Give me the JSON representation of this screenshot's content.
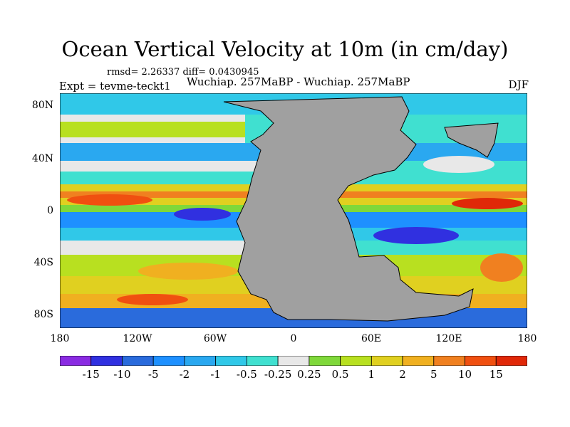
{
  "title": "Ocean Vertical Velocity at 10m (in cm/day)",
  "stats": "rmsd= 2.26337 diff= 0.0430945",
  "left_label": "Expt = tevme-teckt1",
  "subtitle": "Wuchiap. 257MaBP - Wuchiap. 257MaBP",
  "season": "DJF",
  "lat_labels": [
    "80N",
    "40N",
    "0",
    "40S",
    "80S"
  ],
  "lon_labels": [
    "180",
    "120W",
    "60W",
    "0",
    "60E",
    "120E",
    "180"
  ],
  "colorbar": {
    "labels": [
      "-15",
      "-10",
      "-5",
      "-2",
      "-1",
      "-0.5",
      "-0.25",
      "0.25",
      "0.5",
      "1",
      "2",
      "5",
      "10",
      "15"
    ],
    "colors": [
      "#8a2be2",
      "#3030e0",
      "#2a6bdc",
      "#1e90ff",
      "#2aa8f0",
      "#30c8e8",
      "#40e0d0",
      "#e8e8e8",
      "#7fd83a",
      "#b8e020",
      "#e0d020",
      "#f0b020",
      "#f08020",
      "#f05010",
      "#e02808"
    ]
  },
  "colors": {
    "land": "#a0a0a0",
    "coast": "#000000"
  }
}
